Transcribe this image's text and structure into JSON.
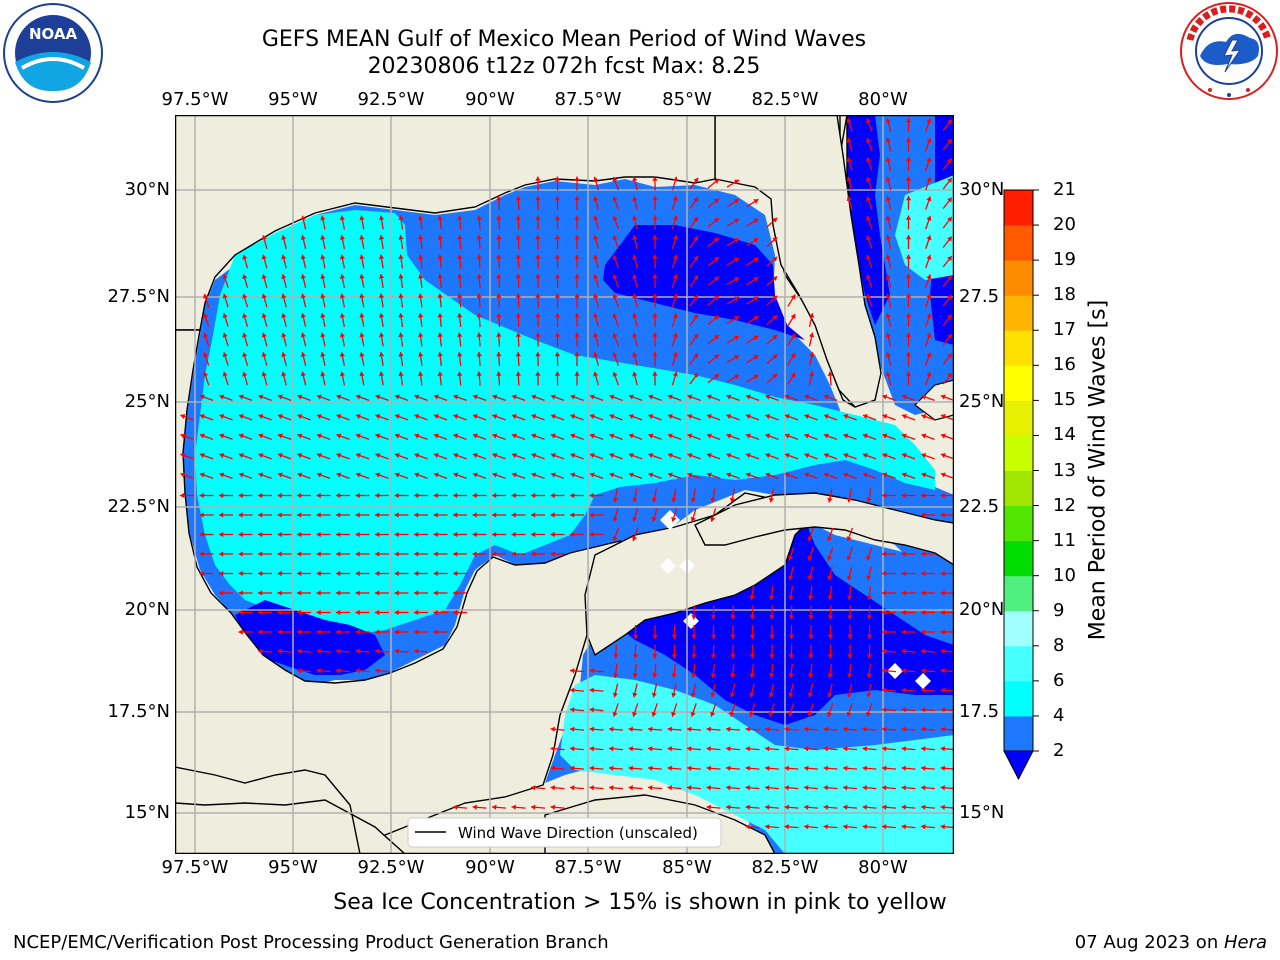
{
  "header": {
    "title_line1": "GEFS MEAN Gulf of Mexico Mean Period of Wind Waves",
    "title_line2": "20230806 t12z 072h fcst   Max: 8.25"
  },
  "logos": {
    "noaa_text": "NOAA",
    "noaa_ring": "NATIONAL OCEANIC AND ATMOSPHERIC ADMINISTRATION · U.S. DEPARTMENT OF COMMERCE",
    "nws_ring": "NATIONAL WEATHER SERVICE"
  },
  "map": {
    "lon_labels": [
      "97.5°W",
      "95°W",
      "92.5°W",
      "90°W",
      "87.5°W",
      "85°W",
      "82.5°W",
      "80°W"
    ],
    "lat_labels_left": [
      "30°N",
      "27.5°N",
      "25°N",
      "22.5°N",
      "20°N",
      "17.5°N",
      "15°N"
    ],
    "lat_labels_right": [
      "30°N",
      "27.5",
      "25°N",
      "22.5",
      "20°N",
      "17.5",
      "15°N"
    ],
    "legend_label": "Wind Wave Direction (unscaled)",
    "colors": {
      "land": "#efedde",
      "c2": "#0000ff",
      "c4": "#1e78ff",
      "c6": "#00ffff",
      "c8": "#46ffff",
      "arrow": "#ff0000",
      "grid": "#b0b0b0"
    }
  },
  "colorbar": {
    "label": "Mean Period of Wind Waves [s]",
    "ticks": [
      "2",
      "4",
      "6",
      "8",
      "9",
      "10",
      "11",
      "12",
      "13",
      "14",
      "15",
      "16",
      "17",
      "18",
      "19",
      "20",
      "21"
    ],
    "colors": [
      "#1e78ff",
      "#00ffff",
      "#46ffff",
      "#a0ffff",
      "#50f080",
      "#00dc00",
      "#50e600",
      "#a0e600",
      "#c8ff00",
      "#e6f000",
      "#ffff00",
      "#ffe100",
      "#ffb400",
      "#ff8c00",
      "#ff5a00",
      "#ff1e00"
    ],
    "extend_color": "#0000ff"
  },
  "footer": {
    "caption": "Sea Ice Concentration > 15% is shown in pink to yellow",
    "left": "NCEP/EMC/Verification Post Processing Product Generation Branch",
    "right_date": "07 Aug 2023 on ",
    "right_host": "Hera"
  }
}
